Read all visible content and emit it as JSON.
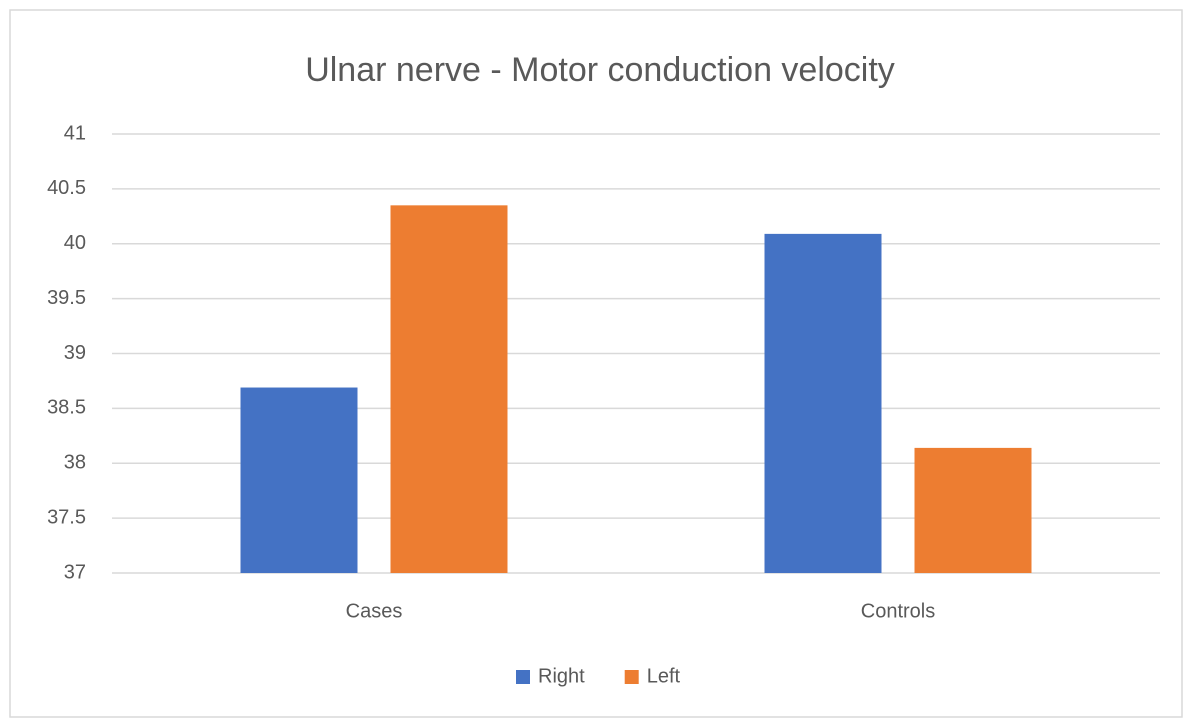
{
  "chart_data": {
    "type": "bar",
    "title": "Ulnar nerve - Motor conduction velocity",
    "categories": [
      "Cases",
      "Controls"
    ],
    "series": [
      {
        "name": "Right",
        "color": "#4472c4",
        "values": [
          38.69,
          40.09
        ]
      },
      {
        "name": "Left",
        "color": "#ed7d31",
        "values": [
          40.35,
          38.14
        ]
      }
    ],
    "ylim": [
      37,
      41
    ],
    "yticks": [
      37,
      37.5,
      38,
      38.5,
      39,
      39.5,
      40,
      40.5,
      41
    ],
    "grid": true,
    "legend": "bottom"
  }
}
